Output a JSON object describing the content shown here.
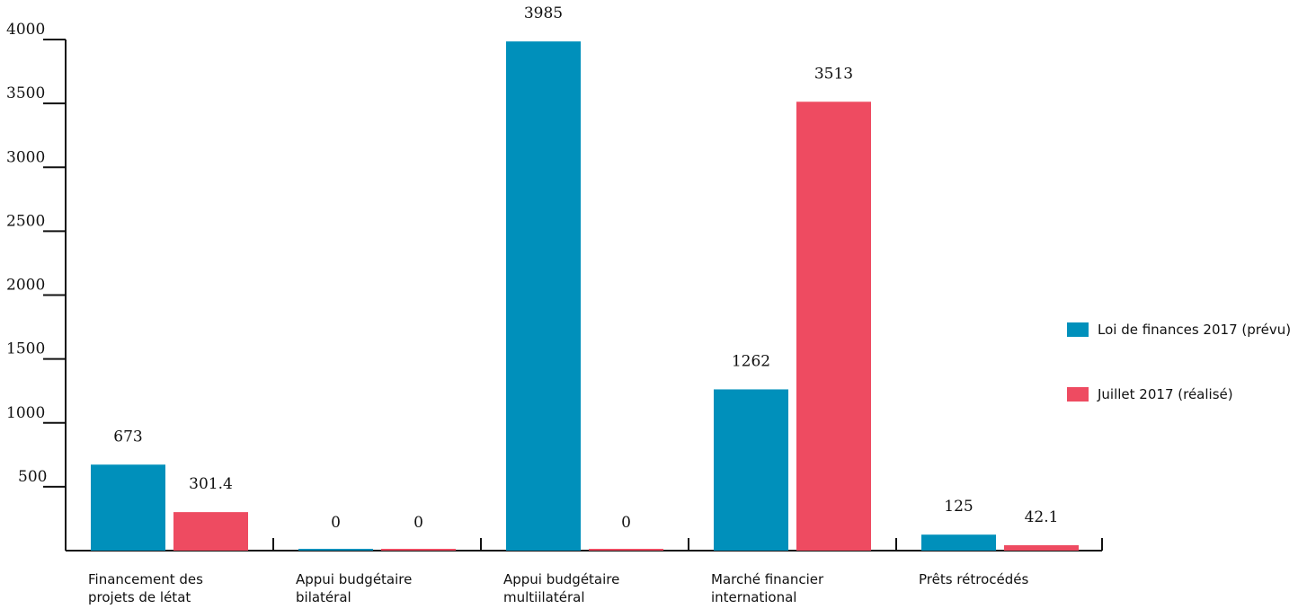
{
  "chart_data": {
    "type": "bar",
    "title": "",
    "xlabel": "",
    "ylabel": "",
    "categories": [
      [
        "Financement des",
        "projets de létat"
      ],
      [
        "Appui budgétaire",
        "bilatéral"
      ],
      [
        "Appui budgétaire",
        "multiilatéral"
      ],
      [
        "Marché financier",
        "international"
      ],
      [
        "Prêts rétrocédés"
      ]
    ],
    "series": [
      {
        "name": "Loi de finances 2017 (prévu)",
        "color": "#0090bb",
        "values": [
          673,
          0,
          3985,
          1262,
          125
        ],
        "labels": [
          "673",
          "0",
          "3985",
          "1262",
          "125"
        ]
      },
      {
        "name": "Juillet 2017 (réalisé)",
        "color": "#ee4b61",
        "values": [
          301.4,
          0,
          0,
          3513,
          42.1
        ],
        "labels": [
          "301.4",
          "0",
          "0",
          "3513",
          "42.1"
        ]
      }
    ],
    "ylim": [
      0,
      4000
    ],
    "yticks": [
      500,
      1000,
      1500,
      2000,
      2500,
      3000,
      3500,
      4000
    ],
    "grid": false,
    "legend_position": "right"
  }
}
